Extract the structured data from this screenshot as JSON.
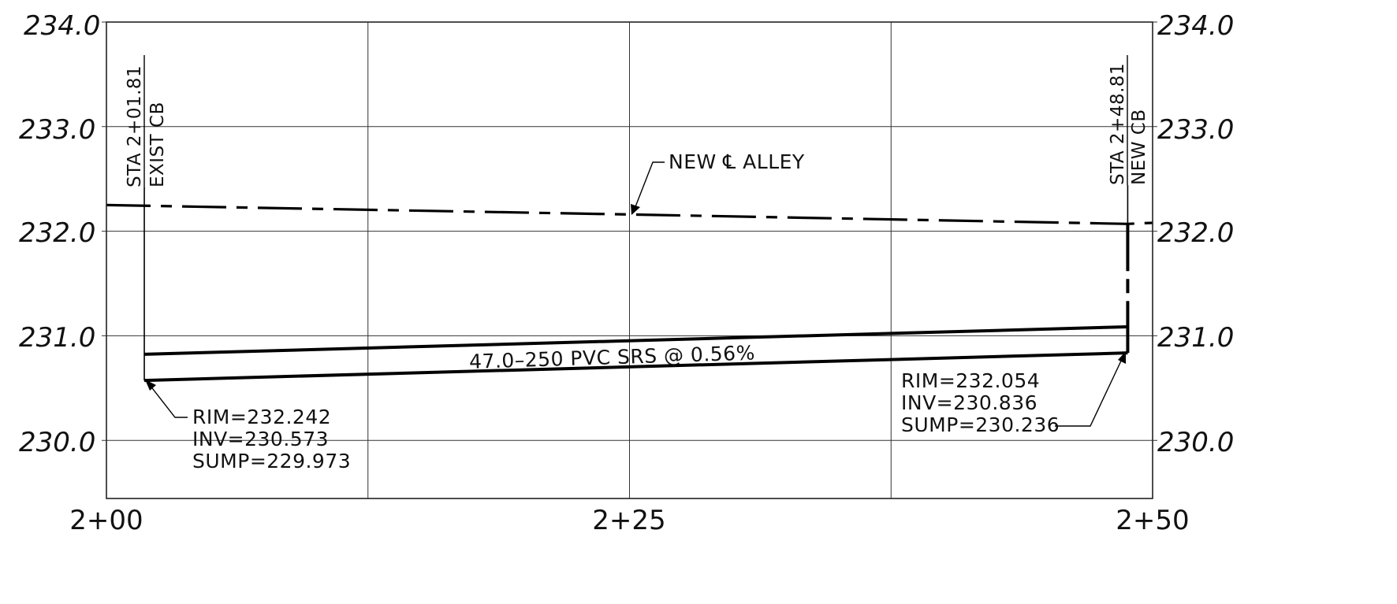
{
  "elevation_labels": [
    "234.0",
    "233.0",
    "232.0",
    "231.0",
    "230.0"
  ],
  "station_labels": [
    "2+00",
    "2+25",
    "2+50"
  ],
  "structures": [
    {
      "station_label": "STA 2+01.81",
      "type_label": "EXIST CB",
      "rim": "RIM=232.242",
      "inv": "INV=230.573",
      "sump": "SUMP=229.973"
    },
    {
      "station_label": "STA 2+48.81",
      "type_label": "NEW CB",
      "rim": "RIM=232.054",
      "inv": "INV=230.836",
      "sump": "SUMP=230.236"
    }
  ],
  "alley_label": "NEW ℄ ALLEY",
  "pipe_label": "47.0–250 PVC SRS @ 0.56%",
  "chart_data": {
    "type": "profile",
    "x_ticks": [
      200,
      225,
      250
    ],
    "y_ticks": [
      230,
      231,
      232,
      233,
      234
    ],
    "xlim": [
      200,
      250
    ],
    "ylim": [
      229.45,
      234.0
    ],
    "grid": true,
    "alley_centerline": [
      [
        200,
        232.25
      ],
      [
        225,
        232.16
      ],
      [
        248.81,
        232.07
      ],
      [
        250,
        232.08
      ]
    ],
    "pipe_invert": [
      [
        201.81,
        230.573
      ],
      [
        248.81,
        230.836
      ]
    ],
    "pipe_crown": [
      [
        201.81,
        230.823
      ],
      [
        248.81,
        231.086
      ]
    ],
    "structure_stations": [
      201.81,
      248.81
    ],
    "structure_sumps": [
      229.973,
      230.236
    ]
  }
}
